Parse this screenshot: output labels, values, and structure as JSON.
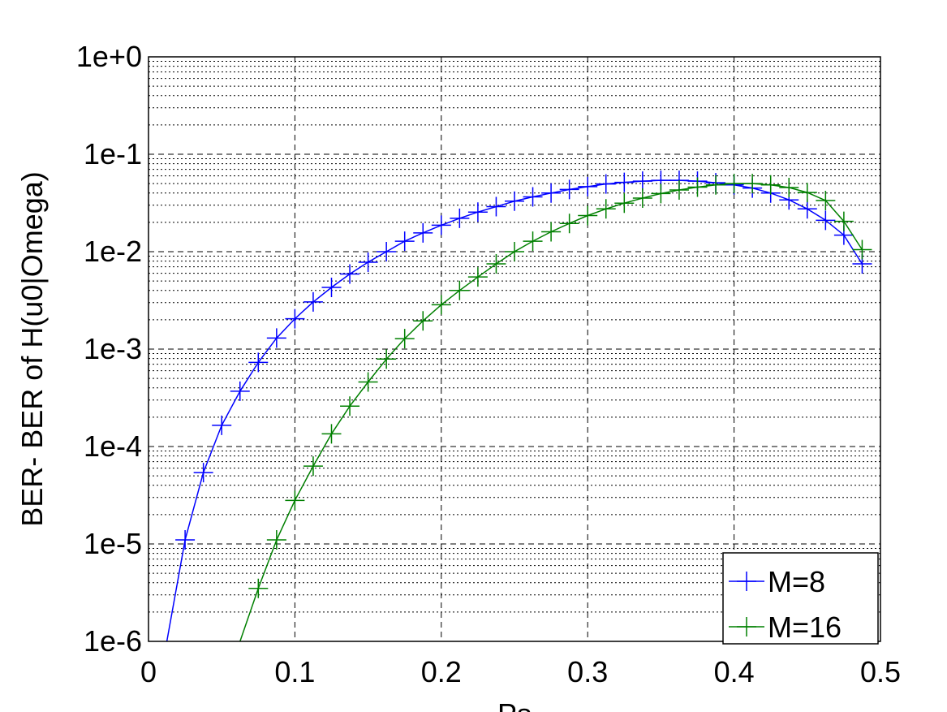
{
  "chart_data": {
    "type": "line",
    "title": "",
    "xlabel": "Ps",
    "ylabel": "BER- BER of H(u0|Omega)",
    "xlim": [
      0,
      0.5
    ],
    "ylim": [
      1e-06,
      1
    ],
    "yscale": "log",
    "grid": true,
    "legend_position": "bottom-right",
    "x_ticks": [
      {
        "value": 0,
        "label": "0"
      },
      {
        "value": 0.1,
        "label": "0.1"
      },
      {
        "value": 0.2,
        "label": "0.2"
      },
      {
        "value": 0.3,
        "label": "0.3"
      },
      {
        "value": 0.4,
        "label": "0.4"
      },
      {
        "value": 0.5,
        "label": "0.5"
      }
    ],
    "y_ticks": [
      {
        "value": 1e-06,
        "label": "1e-6"
      },
      {
        "value": 1e-05,
        "label": "1e-5"
      },
      {
        "value": 0.0001,
        "label": "1e-4"
      },
      {
        "value": 0.001,
        "label": "1e-3"
      },
      {
        "value": 0.01,
        "label": "1e-2"
      },
      {
        "value": 0.1,
        "label": "1e-1"
      },
      {
        "value": 1,
        "label": "1e+0"
      }
    ],
    "series": [
      {
        "name": "M=8",
        "color": "#0000ff",
        "marker": "+",
        "x": [
          0.0125,
          0.025,
          0.0375,
          0.05,
          0.0625,
          0.075,
          0.0875,
          0.1,
          0.1125,
          0.125,
          0.1375,
          0.15,
          0.1625,
          0.175,
          0.1875,
          0.2,
          0.2125,
          0.225,
          0.2375,
          0.25,
          0.2625,
          0.275,
          0.2875,
          0.3,
          0.3125,
          0.325,
          0.3375,
          0.35,
          0.3625,
          0.375,
          0.3875,
          0.4,
          0.4125,
          0.425,
          0.4375,
          0.45,
          0.4625,
          0.475,
          0.4875
        ],
        "y": [
          1e-06,
          1.1e-05,
          5.4e-05,
          0.000165,
          0.00037,
          0.00073,
          0.0013,
          0.00205,
          0.00305,
          0.0043,
          0.0059,
          0.0078,
          0.01,
          0.0128,
          0.0156,
          0.0187,
          0.022,
          0.0255,
          0.029,
          0.033,
          0.0365,
          0.04,
          0.0435,
          0.0465,
          0.0495,
          0.0515,
          0.053,
          0.054,
          0.054,
          0.053,
          0.051,
          0.0485,
          0.045,
          0.04,
          0.034,
          0.0275,
          0.021,
          0.0148,
          0.0075
        ]
      },
      {
        "name": "M=16",
        "color": "#008000",
        "marker": "+",
        "x": [
          0.0625,
          0.075,
          0.0875,
          0.1,
          0.1125,
          0.125,
          0.1375,
          0.15,
          0.1625,
          0.175,
          0.1875,
          0.2,
          0.2125,
          0.225,
          0.2375,
          0.25,
          0.2625,
          0.275,
          0.2875,
          0.3,
          0.3125,
          0.325,
          0.3375,
          0.35,
          0.3625,
          0.375,
          0.3875,
          0.4,
          0.4125,
          0.425,
          0.4375,
          0.45,
          0.4625,
          0.475,
          0.4875
        ],
        "y": [
          1e-06,
          3.5e-06,
          1.1e-05,
          2.8e-05,
          6.3e-05,
          0.000135,
          0.00026,
          0.00046,
          0.00079,
          0.00128,
          0.00195,
          0.00285,
          0.004,
          0.0055,
          0.0075,
          0.01,
          0.0128,
          0.016,
          0.0195,
          0.0235,
          0.0275,
          0.0315,
          0.0355,
          0.0395,
          0.043,
          0.046,
          0.0485,
          0.05,
          0.05,
          0.0485,
          0.0455,
          0.0405,
          0.0335,
          0.0205,
          0.0105
        ]
      }
    ]
  }
}
